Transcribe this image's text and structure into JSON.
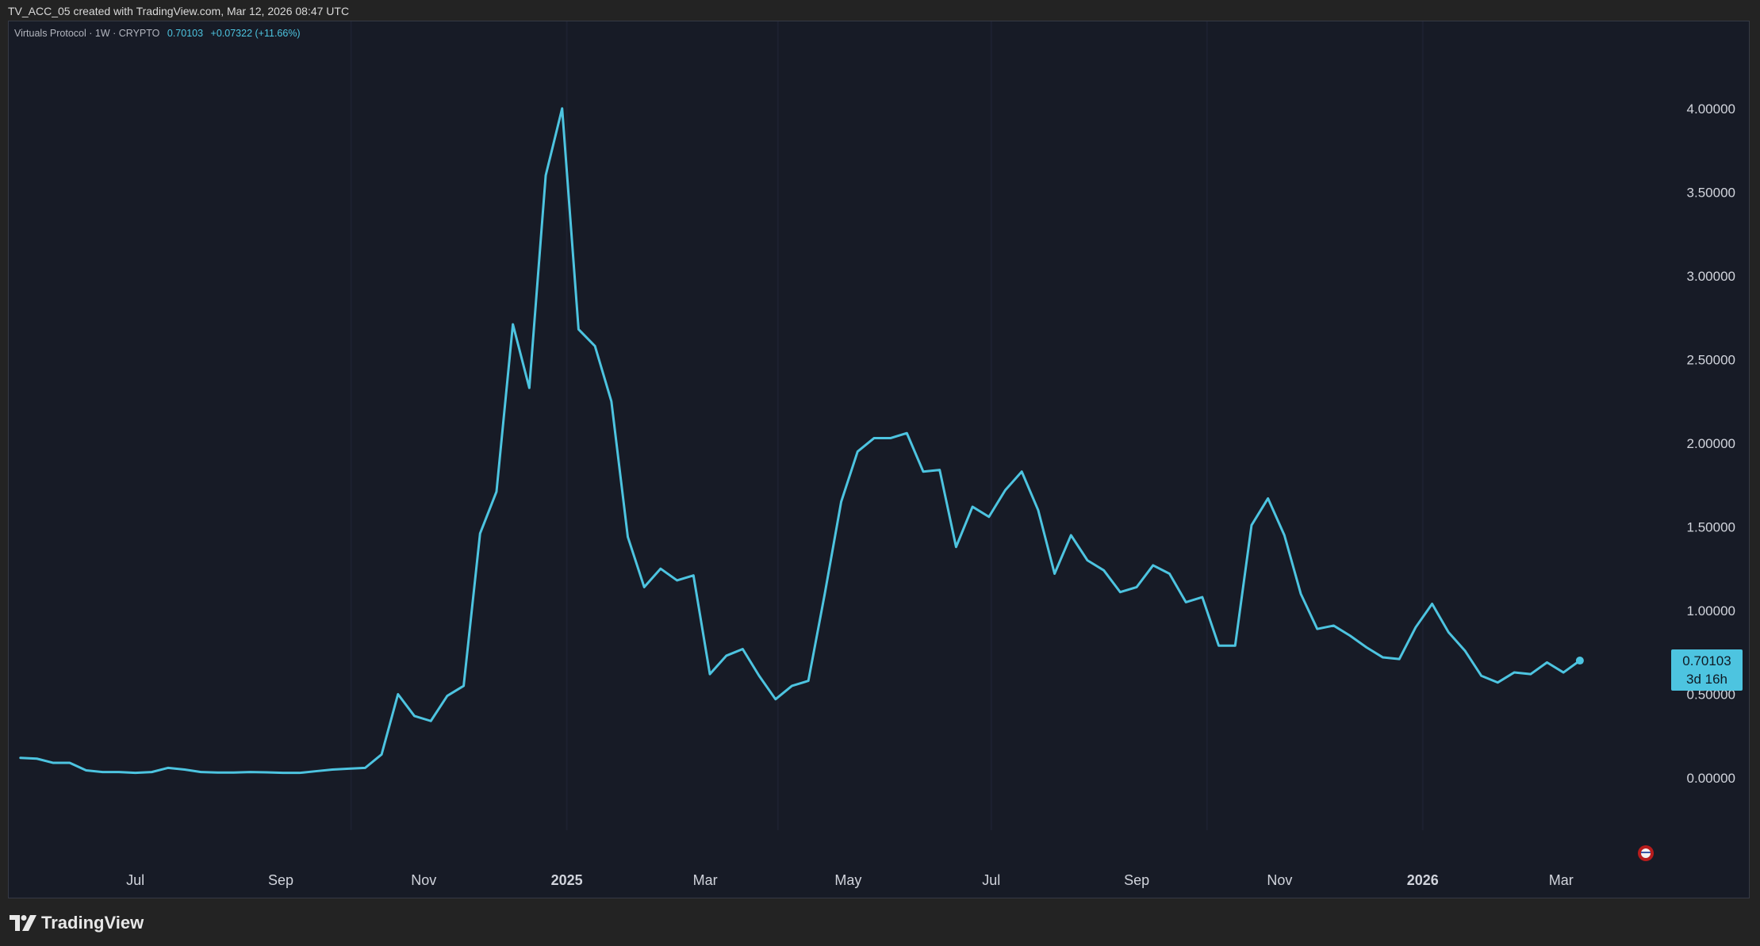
{
  "caption": "TV_ACC_05 created with TradingView.com, Mar 12, 2026 08:47 UTC",
  "legend": {
    "title": "Virtuals Protocol · 1W · CRYPTO",
    "value": "0.70103",
    "change": "+0.07322 (+11.66%)"
  },
  "brand": "TradingView",
  "brand_icon": "tradingview-logo-icon",
  "flag_icon": "us-flag-icon",
  "colors": {
    "line": "#4dc4e0",
    "background": "#171b26",
    "axis_text": "#d1d4dc"
  },
  "price_badge": {
    "value": "0.70103",
    "countdown": "3d 16h"
  },
  "chart_data": {
    "type": "line",
    "title": "Virtuals Protocol · 1W · CRYPTO",
    "xlabel": "",
    "ylabel": "",
    "ylim": [
      -0.36,
      4.52
    ],
    "y_ticks": [
      "4.00000",
      "3.50000",
      "3.00000",
      "2.50000",
      "2.00000",
      "1.50000",
      "1.00000",
      "0.50000",
      "0.00000"
    ],
    "y_tick_values": [
      4.0,
      3.5,
      3.0,
      2.5,
      2.0,
      1.5,
      1.0,
      0.5,
      0.0
    ],
    "x_ticks": [
      {
        "label": "Jul",
        "date": "2024-07-01",
        "bold": false
      },
      {
        "label": "Sep",
        "date": "2024-09-01",
        "bold": false
      },
      {
        "label": "Nov",
        "date": "2024-11-01",
        "bold": false
      },
      {
        "label": "2025",
        "date": "2025-01-01",
        "bold": true
      },
      {
        "label": "Mar",
        "date": "2025-03-01",
        "bold": false
      },
      {
        "label": "May",
        "date": "2025-05-01",
        "bold": false
      },
      {
        "label": "Jul",
        "date": "2025-07-01",
        "bold": false
      },
      {
        "label": "Sep",
        "date": "2025-09-01",
        "bold": false
      },
      {
        "label": "Nov",
        "date": "2025-11-01",
        "bold": false
      },
      {
        "label": "2026",
        "date": "2026-01-01",
        "bold": true
      },
      {
        "label": "Mar",
        "date": "2026-03-01",
        "bold": false
      }
    ],
    "x_range": [
      "2024-05-08",
      "2026-03-29"
    ],
    "grid": false,
    "legend": "top-left",
    "series": [
      {
        "dates": [
          "2024-05-13",
          "2024-05-20",
          "2024-05-27",
          "2024-06-03",
          "2024-06-10",
          "2024-06-17",
          "2024-06-24",
          "2024-07-01",
          "2024-07-08",
          "2024-07-15",
          "2024-07-22",
          "2024-07-29",
          "2024-08-05",
          "2024-08-12",
          "2024-08-19",
          "2024-08-26",
          "2024-09-02",
          "2024-09-09",
          "2024-09-16",
          "2024-09-23",
          "2024-09-30",
          "2024-10-07",
          "2024-10-14",
          "2024-10-21",
          "2024-10-28",
          "2024-11-04",
          "2024-11-11",
          "2024-11-18",
          "2024-11-25",
          "2024-12-02",
          "2024-12-09",
          "2024-12-16",
          "2024-12-23",
          "2024-12-30",
          "2025-01-06",
          "2025-01-13",
          "2025-01-20",
          "2025-01-27",
          "2025-02-03",
          "2025-02-10",
          "2025-02-17",
          "2025-02-24",
          "2025-03-03",
          "2025-03-10",
          "2025-03-17",
          "2025-03-24",
          "2025-03-31",
          "2025-04-07",
          "2025-04-14",
          "2025-04-21",
          "2025-04-28",
          "2025-05-05",
          "2025-05-12",
          "2025-05-19",
          "2025-05-26",
          "2025-06-02",
          "2025-06-09",
          "2025-06-16",
          "2025-06-23",
          "2025-06-30",
          "2025-07-07",
          "2025-07-14",
          "2025-07-21",
          "2025-07-28",
          "2025-08-04",
          "2025-08-11",
          "2025-08-18",
          "2025-08-25",
          "2025-09-01",
          "2025-09-08",
          "2025-09-15",
          "2025-09-22",
          "2025-09-29",
          "2025-10-06",
          "2025-10-13",
          "2025-10-20",
          "2025-10-27",
          "2025-11-03",
          "2025-11-10",
          "2025-11-17",
          "2025-11-24",
          "2025-12-01",
          "2025-12-08",
          "2025-12-15",
          "2025-12-22",
          "2025-12-29",
          "2026-01-05",
          "2026-01-12",
          "2026-01-19",
          "2026-01-26",
          "2026-02-02",
          "2026-02-09",
          "2026-02-16",
          "2026-02-23",
          "2026-03-02",
          "2026-03-09"
        ],
        "values": [
          0.12,
          0.115,
          0.09,
          0.09,
          0.045,
          0.035,
          0.035,
          0.03,
          0.035,
          0.06,
          0.05,
          0.035,
          0.032,
          0.032,
          0.035,
          0.033,
          0.03,
          0.03,
          0.04,
          0.05,
          0.055,
          0.06,
          0.14,
          0.5,
          0.37,
          0.34,
          0.49,
          0.55,
          1.46,
          1.71,
          2.71,
          2.33,
          3.6,
          4.0,
          2.68,
          2.58,
          2.25,
          1.44,
          1.14,
          1.25,
          1.18,
          1.21,
          0.62,
          0.73,
          0.77,
          0.61,
          0.47,
          0.55,
          0.58,
          1.1,
          1.65,
          1.95,
          2.03,
          2.03,
          2.06,
          1.83,
          1.84,
          1.38,
          1.62,
          1.56,
          1.72,
          1.83,
          1.6,
          1.22,
          1.45,
          1.3,
          1.24,
          1.11,
          1.14,
          1.27,
          1.22,
          1.05,
          1.08,
          0.79,
          0.79,
          1.51,
          1.67,
          1.45,
          1.1,
          0.89,
          0.91,
          0.85,
          0.78,
          0.72,
          0.71,
          0.9,
          1.04,
          0.87,
          0.76,
          0.61,
          0.57,
          0.63,
          0.62,
          0.69,
          0.63,
          0.70103
        ]
      }
    ]
  }
}
